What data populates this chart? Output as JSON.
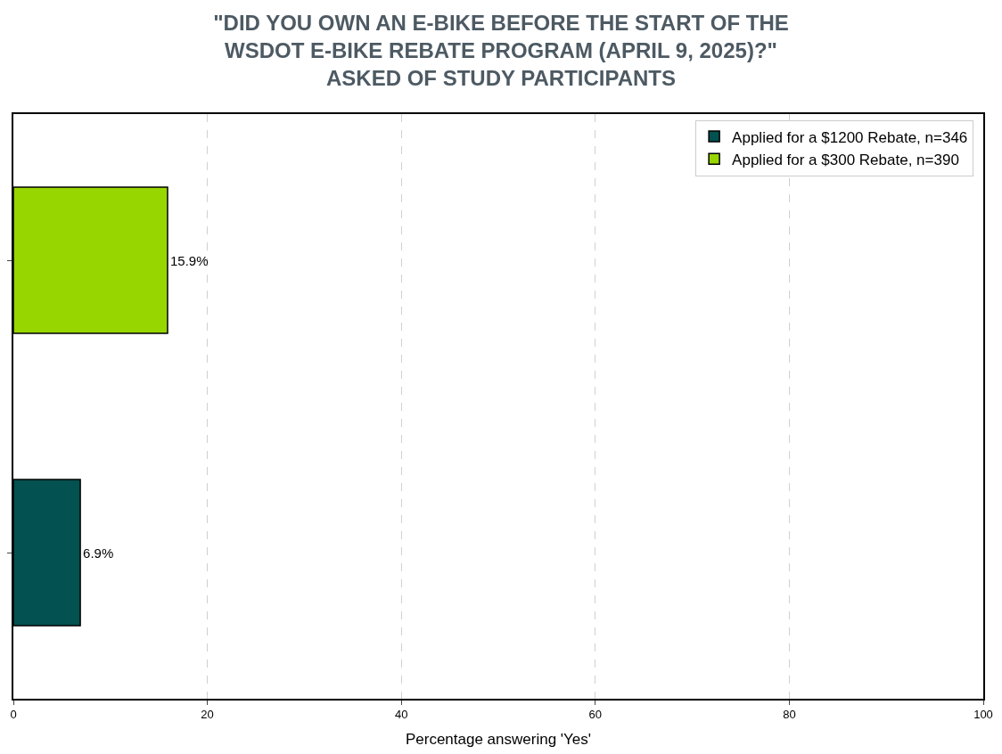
{
  "chart_data": {
    "type": "bar",
    "orientation": "horizontal",
    "title": "\"DID YOU OWN AN E-BIKE BEFORE THE START OF THE\nWSDOT E-BIKE REBATE PROGRAM (APRIL 9, 2025)?\"\nASKED OF STUDY PARTICIPANTS",
    "xlabel": "Percentage answering 'Yes'",
    "categories": [
      null,
      null
    ],
    "series": [
      {
        "name": "Applied for a $1200 Rebate, n=346",
        "color": "#035150",
        "values": [
          null,
          6.9
        ],
        "value_labels": [
          null,
          "6.9%"
        ]
      },
      {
        "name": "Applied for a $300 Rebate, n=390",
        "color": "#98d600",
        "values": [
          15.9,
          null
        ],
        "value_labels": [
          "15.9%",
          null
        ]
      }
    ],
    "xlim": [
      0,
      100
    ],
    "xticks": [
      0,
      20,
      40,
      60,
      80,
      100
    ],
    "grid": "x",
    "legend": "top right",
    "tick_labels": "x"
  }
}
